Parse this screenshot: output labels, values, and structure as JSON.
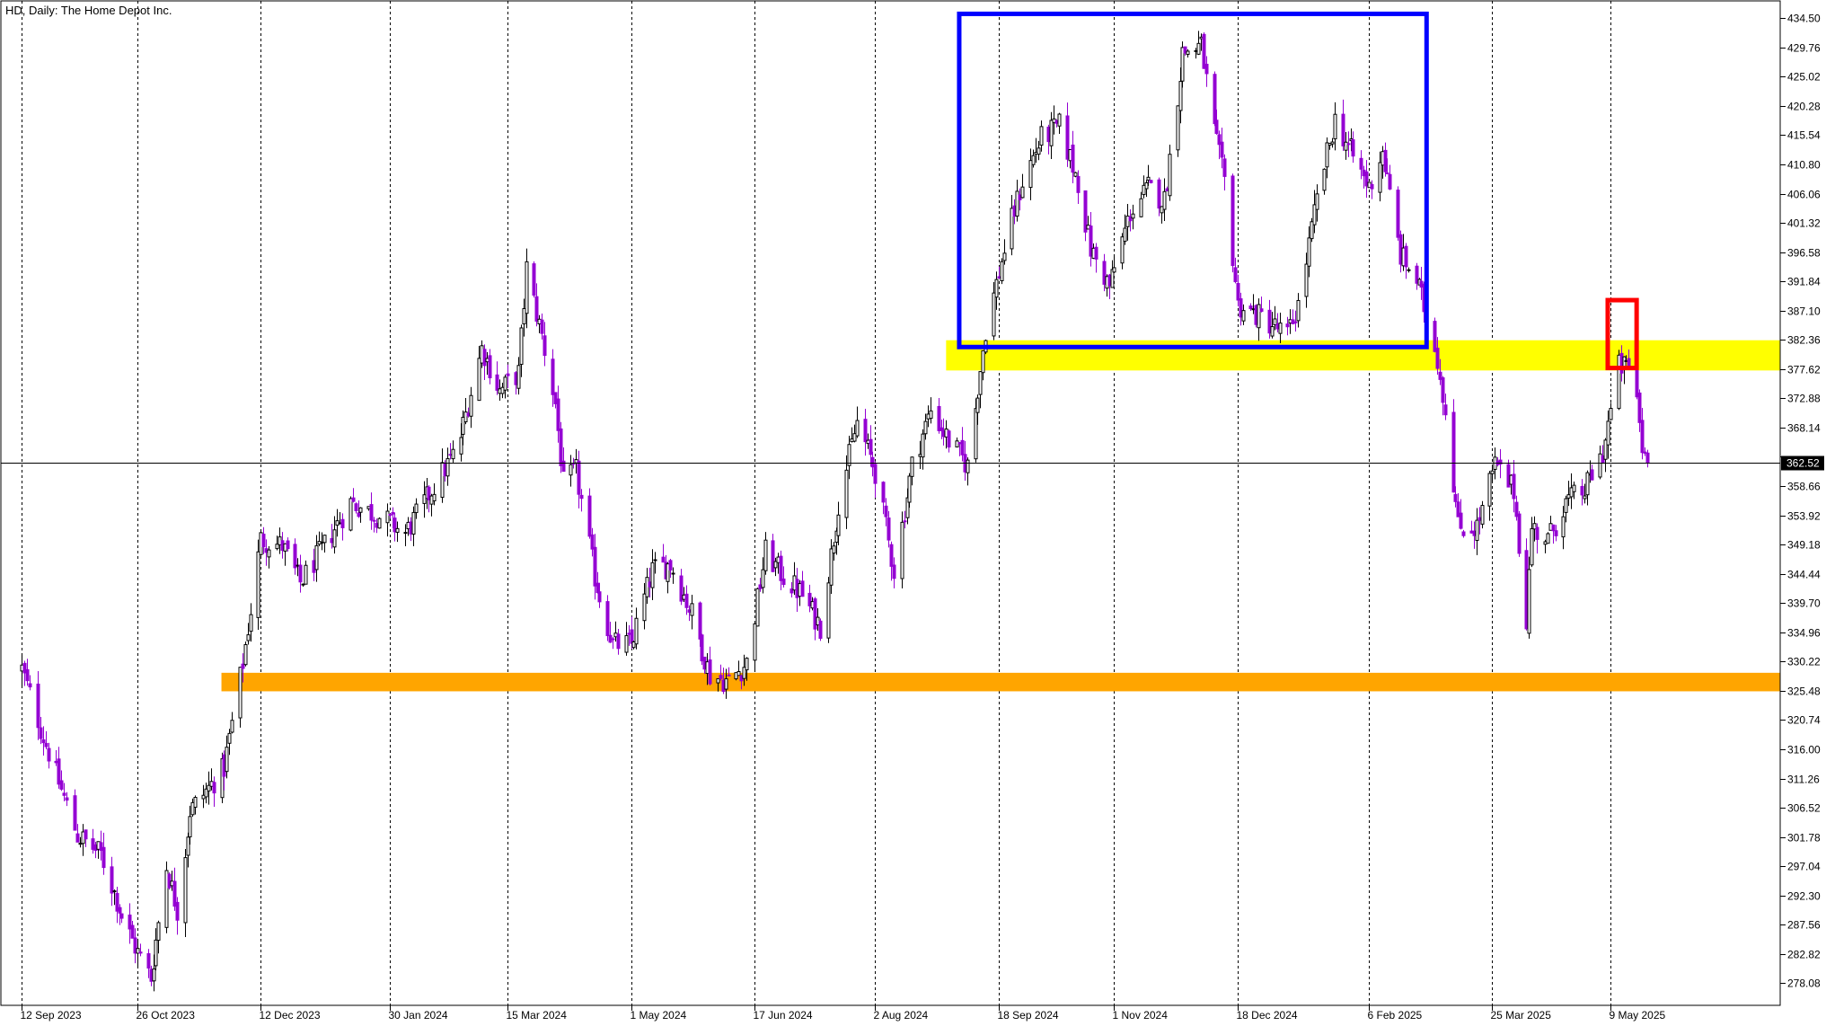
{
  "chart_data": {
    "type": "candlestick",
    "title": "HD, Daily:  The Home Depot Inc.",
    "y_ticks": [
      434.5,
      429.76,
      425.02,
      420.28,
      415.54,
      410.8,
      406.06,
      401.32,
      396.58,
      391.84,
      387.1,
      382.36,
      377.62,
      372.88,
      368.14,
      363.4,
      358.66,
      353.92,
      349.18,
      344.44,
      339.7,
      334.96,
      330.22,
      325.48,
      320.74,
      316.0,
      311.26,
      306.52,
      301.78,
      297.04,
      292.3,
      287.56,
      282.82,
      278.08
    ],
    "y_tick_labels": [
      "434.50",
      "429.76",
      "425.02",
      "420.28",
      "415.54",
      "410.80",
      "406.06",
      "401.32",
      "396.58",
      "391.84",
      "387.10",
      "382.36",
      "377.62",
      "372.88",
      "368.14",
      "",
      "358.66",
      "353.92",
      "349.18",
      "344.44",
      "339.70",
      "334.96",
      "330.22",
      "325.48",
      "320.74",
      "316.00",
      "311.26",
      "306.52",
      "301.78",
      "297.04",
      "292.30",
      "287.56",
      "282.82",
      "278.08"
    ],
    "ylim": [
      274.5,
      437.3
    ],
    "x_labels": [
      "12 Sep 2023",
      "26 Oct 2023",
      "12 Dec 2023",
      "30 Jan 2024",
      "15 Mar 2024",
      "1 May 2024",
      "17 Jun 2024",
      "2 Aug 2024",
      "18 Sep 2024",
      "1 Nov 2024",
      "18 Dec 2024",
      "6 Feb 2025",
      "25 Mar 2025",
      "9 May 2025"
    ],
    "current_price": 362.52,
    "current_price_label": "362.52",
    "grid": "vertical-dotted",
    "bull_color": "#000000",
    "bear_color": "#9400d3",
    "anchors": [
      {
        "date": "2023-09-12",
        "price": 329
      },
      {
        "date": "2023-09-20",
        "price": 318
      },
      {
        "date": "2023-10-03",
        "price": 302
      },
      {
        "date": "2023-10-12",
        "price": 299
      },
      {
        "date": "2023-10-20",
        "price": 289
      },
      {
        "date": "2023-10-26",
        "price": 283
      },
      {
        "date": "2023-10-31",
        "price": 279
      },
      {
        "date": "2023-11-06",
        "price": 297
      },
      {
        "date": "2023-11-10",
        "price": 290
      },
      {
        "date": "2023-11-15",
        "price": 306
      },
      {
        "date": "2023-11-28",
        "price": 313
      },
      {
        "date": "2023-12-05",
        "price": 330
      },
      {
        "date": "2023-12-12",
        "price": 350
      },
      {
        "date": "2023-12-20",
        "price": 349
      },
      {
        "date": "2023-12-27",
        "price": 343
      },
      {
        "date": "2024-01-05",
        "price": 349
      },
      {
        "date": "2024-01-15",
        "price": 356
      },
      {
        "date": "2024-01-25",
        "price": 354
      },
      {
        "date": "2024-02-05",
        "price": 351
      },
      {
        "date": "2024-02-15",
        "price": 358
      },
      {
        "date": "2024-02-25",
        "price": 365
      },
      {
        "date": "2024-03-05",
        "price": 381
      },
      {
        "date": "2024-03-12",
        "price": 374
      },
      {
        "date": "2024-03-19",
        "price": 377
      },
      {
        "date": "2024-03-22",
        "price": 394
      },
      {
        "date": "2024-03-28",
        "price": 383
      },
      {
        "date": "2024-04-02",
        "price": 372
      },
      {
        "date": "2024-04-05",
        "price": 359
      },
      {
        "date": "2024-04-10",
        "price": 361
      },
      {
        "date": "2024-04-17",
        "price": 344
      },
      {
        "date": "2024-04-24",
        "price": 333
      },
      {
        "date": "2024-05-01",
        "price": 333
      },
      {
        "date": "2024-05-09",
        "price": 345
      },
      {
        "date": "2024-05-16",
        "price": 346
      },
      {
        "date": "2024-05-24",
        "price": 338
      },
      {
        "date": "2024-05-31",
        "price": 328
      },
      {
        "date": "2024-06-07",
        "price": 327
      },
      {
        "date": "2024-06-14",
        "price": 330
      },
      {
        "date": "2024-06-21",
        "price": 348
      },
      {
        "date": "2024-06-28",
        "price": 344
      },
      {
        "date": "2024-07-05",
        "price": 341
      },
      {
        "date": "2024-07-12",
        "price": 336
      },
      {
        "date": "2024-07-19",
        "price": 356
      },
      {
        "date": "2024-07-26",
        "price": 369
      },
      {
        "date": "2024-08-02",
        "price": 361
      },
      {
        "date": "2024-08-09",
        "price": 345
      },
      {
        "date": "2024-08-16",
        "price": 362
      },
      {
        "date": "2024-08-23",
        "price": 371
      },
      {
        "date": "2024-08-30",
        "price": 366
      },
      {
        "date": "2024-09-06",
        "price": 362
      },
      {
        "date": "2024-09-13",
        "price": 384
      },
      {
        "date": "2024-09-20",
        "price": 397
      },
      {
        "date": "2024-09-27",
        "price": 408
      },
      {
        "date": "2024-10-04",
        "price": 415
      },
      {
        "date": "2024-10-11",
        "price": 417
      },
      {
        "date": "2024-10-18",
        "price": 408
      },
      {
        "date": "2024-10-23",
        "price": 397
      },
      {
        "date": "2024-10-30",
        "price": 391
      },
      {
        "date": "2024-11-07",
        "price": 403
      },
      {
        "date": "2024-11-14",
        "price": 407
      },
      {
        "date": "2024-11-20",
        "price": 405
      },
      {
        "date": "2024-11-27",
        "price": 429
      },
      {
        "date": "2024-12-04",
        "price": 430
      },
      {
        "date": "2024-12-09",
        "price": 416
      },
      {
        "date": "2024-12-13",
        "price": 408
      },
      {
        "date": "2024-12-18",
        "price": 388
      },
      {
        "date": "2024-12-27",
        "price": 386
      },
      {
        "date": "2025-01-06",
        "price": 383
      },
      {
        "date": "2025-01-10",
        "price": 388
      },
      {
        "date": "2025-01-17",
        "price": 405
      },
      {
        "date": "2025-01-24",
        "price": 418
      },
      {
        "date": "2025-01-31",
        "price": 412
      },
      {
        "date": "2025-02-06",
        "price": 407
      },
      {
        "date": "2025-02-11",
        "price": 413
      },
      {
        "date": "2025-02-18",
        "price": 396
      },
      {
        "date": "2025-02-24",
        "price": 392
      },
      {
        "date": "2025-03-03",
        "price": 382
      },
      {
        "date": "2025-03-07",
        "price": 371
      },
      {
        "date": "2025-03-12",
        "price": 352
      },
      {
        "date": "2025-03-19",
        "price": 352
      },
      {
        "date": "2025-03-26",
        "price": 362
      },
      {
        "date": "2025-04-02",
        "price": 358
      },
      {
        "date": "2025-04-07",
        "price": 337
      },
      {
        "date": "2025-04-09",
        "price": 352
      },
      {
        "date": "2025-04-15",
        "price": 350
      },
      {
        "date": "2025-04-22",
        "price": 356
      },
      {
        "date": "2025-04-29",
        "price": 358
      },
      {
        "date": "2025-05-06",
        "price": 364
      },
      {
        "date": "2025-05-12",
        "price": 378
      },
      {
        "date": "2025-05-16",
        "price": 378
      },
      {
        "date": "2025-05-19",
        "price": 373
      },
      {
        "date": "2025-05-21",
        "price": 365
      },
      {
        "date": "2025-05-23",
        "price": 362.52
      }
    ]
  },
  "annotations": [
    {
      "type": "rect",
      "color": "#0000ff",
      "label": "blue-range-box",
      "x0": "2024-09-03",
      "x1": "2025-02-28",
      "y0": 381.2,
      "y1": 435.2
    },
    {
      "type": "zone",
      "color": "#ffff00",
      "label": "yellow-resistance-zone",
      "x0": "2024-08-29",
      "y0": 377.4,
      "y1": 382.3
    },
    {
      "type": "zone",
      "color": "#ffa500",
      "label": "orange-support-zone",
      "x0": "2023-11-27",
      "y0": 325.4,
      "y1": 328.4
    },
    {
      "type": "rect",
      "color": "#ff0000",
      "label": "red-highlight-box",
      "x0": "2025-05-08",
      "x1": "2025-05-19",
      "y0": 377.8,
      "y1": 388.8
    }
  ]
}
